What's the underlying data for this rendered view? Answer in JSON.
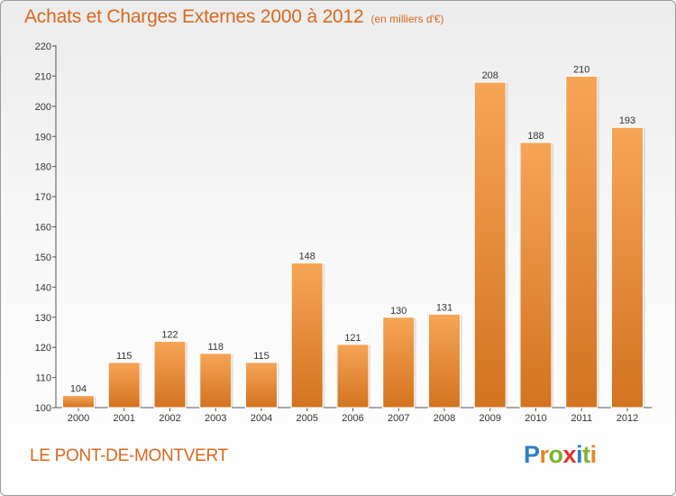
{
  "header": {
    "title": "Achats et Charges Externes 2000 à 2012",
    "subtitle": "(en milliers d'€)"
  },
  "footer": {
    "commune": "LE PONT-DE-MONTVERT",
    "logo": {
      "letters": [
        {
          "char": "P",
          "color": "#2e7fc4"
        },
        {
          "char": "r",
          "color": "#e8862a"
        },
        {
          "char": "o",
          "color": "#79b530"
        },
        {
          "char": "x",
          "color": "#e4312b"
        },
        {
          "char": "i",
          "color": "#2e7fc4"
        },
        {
          "char": "t",
          "color": "#79b530"
        },
        {
          "char": "i",
          "color": "#e8862a"
        }
      ]
    }
  },
  "colors": {
    "bar_top": "#f7a556",
    "bar_bottom": "#d2731f",
    "accent": "#d9681e"
  },
  "chart_data": {
    "type": "bar",
    "categories": [
      "2000",
      "2001",
      "2002",
      "2003",
      "2004",
      "2005",
      "2006",
      "2007",
      "2008",
      "2009",
      "2010",
      "2011",
      "2012"
    ],
    "values": [
      104,
      115,
      122,
      118,
      115,
      148,
      121,
      130,
      131,
      208,
      188,
      210,
      193
    ],
    "title": "Achats et Charges Externes 2000 à 2012",
    "ylim": [
      100,
      220
    ],
    "yticks": [
      100,
      110,
      120,
      130,
      140,
      150,
      160,
      170,
      180,
      190,
      200,
      210,
      220
    ],
    "grid": false,
    "legend": "none"
  }
}
